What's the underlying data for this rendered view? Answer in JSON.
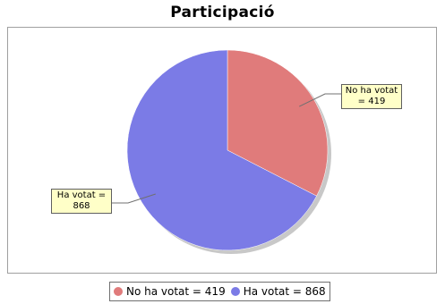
{
  "chart_data": {
    "type": "pie",
    "title": "Participació",
    "slices": [
      {
        "name": "No ha votat",
        "value": 419,
        "color": "#e07b7b",
        "label": "No ha votat\n= 419"
      },
      {
        "name": "Ha votat",
        "value": 868,
        "color": "#7b7be6",
        "label": "Ha votat =\n868"
      }
    ],
    "legend": {
      "placement": "bottom",
      "entries": [
        "No ha votat = 419",
        "Ha votat = 868"
      ]
    }
  }
}
